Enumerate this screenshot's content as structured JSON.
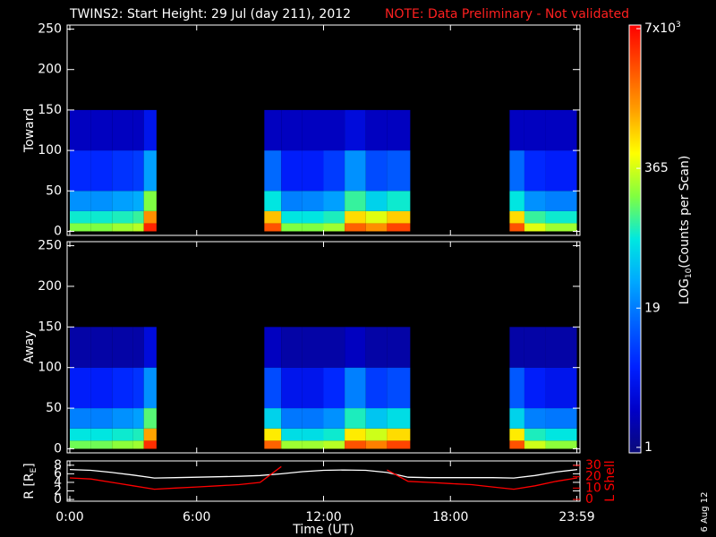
{
  "title": "TWINS2: Start Height: 29 Jul (day 211), 2012",
  "note": "NOTE: Data Preliminary - Not validated",
  "date_stamp": "6 Aug 12",
  "colorbar": {
    "scale": "log",
    "lim": [
      0.89,
      7550
    ],
    "ticks": [
      1,
      19,
      365,
      {
        "value": 7000,
        "label": "7x10",
        "exponent": "3"
      }
    ],
    "label": [
      "LOG",
      "10",
      "(Counts per Scan)"
    ],
    "colormap": [
      "#0a0a78",
      "#0000c8",
      "#0020ff",
      "#0060ff",
      "#00a8ff",
      "#00e8e0",
      "#80ff40",
      "#ffff00",
      "#ffa000",
      "#ff5000",
      "#ff0000"
    ]
  },
  "chart_data": [
    {
      "type": "heatmap",
      "ylabel": "Toward",
      "x_bins": [
        0,
        1,
        2,
        3,
        3.5,
        4.1,
        9.2,
        10,
        11,
        12,
        13,
        14,
        15,
        16.1,
        20.8,
        21.5,
        22.5,
        23.98
      ],
      "y_bins": [
        0,
        10,
        25,
        50,
        100,
        150
      ],
      "ylim": [
        -5,
        255
      ],
      "yticks": [
        0,
        50,
        100,
        150,
        200,
        250
      ],
      "z": [
        [
          200,
          200,
          250,
          300,
          5000,
          null,
          3000,
          200,
          200,
          250,
          2500,
          1500,
          3500,
          null,
          3000,
          400,
          250
        ],
        [
          90,
          90,
          100,
          120,
          1500,
          null,
          900,
          80,
          80,
          100,
          700,
          400,
          800,
          null,
          700,
          120,
          90
        ],
        [
          25,
          25,
          30,
          35,
          200,
          null,
          80,
          20,
          22,
          30,
          120,
          60,
          90,
          null,
          80,
          25,
          20
        ],
        [
          6,
          6,
          7,
          8,
          30,
          null,
          15,
          5,
          5,
          8,
          25,
          10,
          12,
          null,
          15,
          6,
          5
        ],
        [
          2,
          2,
          2,
          2,
          4,
          null,
          2,
          2,
          2,
          2,
          3,
          2,
          2,
          null,
          2,
          2,
          2
        ]
      ]
    },
    {
      "type": "heatmap",
      "ylabel": "Away",
      "x_bins": [
        0,
        1,
        2,
        3,
        3.5,
        4.1,
        9.2,
        10,
        11,
        12,
        13,
        14,
        15,
        16.1,
        20.8,
        21.5,
        22.5,
        23.98
      ],
      "y_bins": [
        0,
        10,
        25,
        50,
        100,
        150
      ],
      "ylim": [
        -5,
        255
      ],
      "yticks": [
        0,
        50,
        100,
        150,
        200,
        250
      ],
      "z": [
        [
          180,
          180,
          220,
          250,
          4500,
          null,
          2500,
          250,
          250,
          300,
          3000,
          1800,
          3500,
          null,
          3000,
          350,
          220
        ],
        [
          80,
          80,
          90,
          100,
          1200,
          null,
          600,
          70,
          70,
          90,
          600,
          350,
          700,
          null,
          600,
          100,
          80
        ],
        [
          20,
          20,
          25,
          30,
          150,
          null,
          60,
          18,
          18,
          25,
          100,
          50,
          70,
          null,
          60,
          20,
          18
        ],
        [
          5,
          5,
          6,
          7,
          25,
          null,
          10,
          4,
          4,
          6,
          20,
          8,
          10,
          null,
          12,
          5,
          4
        ],
        [
          1.5,
          1.5,
          1.5,
          1.5,
          3,
          null,
          2,
          1.5,
          1.5,
          1.5,
          2,
          1.5,
          1.5,
          null,
          1.5,
          1.5,
          1.5
        ]
      ]
    },
    {
      "type": "line",
      "xlabel": "Time (UT)",
      "ylabel": [
        "R [R",
        "E",
        "]"
      ],
      "y2label": "L Shell",
      "x": [
        0,
        1,
        2,
        3,
        4,
        5,
        6,
        7,
        8,
        9,
        10,
        11,
        12,
        13,
        14,
        15,
        16,
        17,
        18,
        19,
        20,
        21,
        22,
        23,
        24
      ],
      "xlim": [
        0,
        24
      ],
      "xticks": [
        {
          "value": 0,
          "label": "0:00"
        },
        {
          "value": 6,
          "label": "6:00"
        },
        {
          "value": 12,
          "label": "12:00"
        },
        {
          "value": 18,
          "label": "18:00"
        },
        {
          "value": 23.98,
          "label": "23:59"
        }
      ],
      "ylim": [
        -0.4,
        9
      ],
      "yticks": [
        0,
        2,
        4,
        6,
        8
      ],
      "y2lim": [
        -1.6,
        34
      ],
      "y2ticks": [
        0,
        10,
        20,
        30
      ],
      "y2color": "#ff0000",
      "series": [
        {
          "color": "#ffffff",
          "values": [
            7,
            6.8,
            6.3,
            5.7,
            5.0,
            5.1,
            5.2,
            5.3,
            5.4,
            5.6,
            6.0,
            6.5,
            6.8,
            6.9,
            6.8,
            6.3,
            5.2,
            5.1,
            5.1,
            5.1,
            5.1,
            5.0,
            5.6,
            6.4,
            7.0
          ]
        },
        {
          "color": "#ff0000",
          "axis": "y2",
          "values": [
            19,
            18,
            15,
            12,
            9,
            10,
            11,
            12,
            13,
            15,
            29,
            null,
            null,
            null,
            null,
            26,
            16,
            15,
            14,
            13,
            11,
            9,
            12,
            16,
            19
          ]
        }
      ]
    }
  ]
}
